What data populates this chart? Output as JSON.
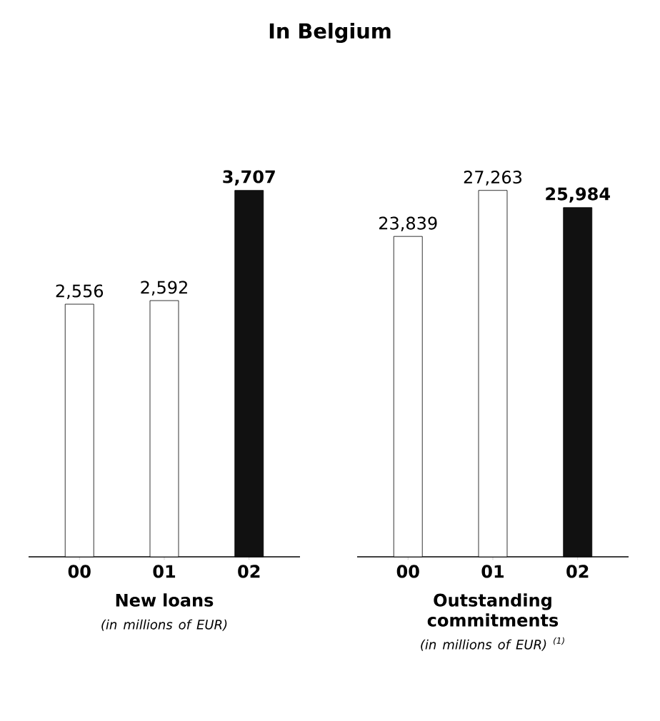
{
  "chart_data": [
    {
      "type": "bar",
      "title": "In Belgium",
      "xlabel": "New loans",
      "annotations": [
        "(in millions of EUR)"
      ],
      "categories": [
        "00",
        "01",
        "02"
      ],
      "values": [
        2556,
        2592,
        3707
      ],
      "colors": [
        "#ffffff",
        "#ffffff",
        "#111111"
      ],
      "value_labels": [
        "2,556",
        "2,592",
        "3,707"
      ]
    },
    {
      "type": "bar",
      "xlabel": "Outstanding commitments",
      "annotations": [
        "(in millions of EUR) $^{(1)}$"
      ],
      "categories": [
        "00",
        "01",
        "02"
      ],
      "values": [
        23839,
        27263,
        25984
      ],
      "colors": [
        "#ffffff",
        "#ffffff",
        "#111111"
      ],
      "value_labels": [
        "23,839",
        "27,263",
        "25,984"
      ]
    }
  ]
}
